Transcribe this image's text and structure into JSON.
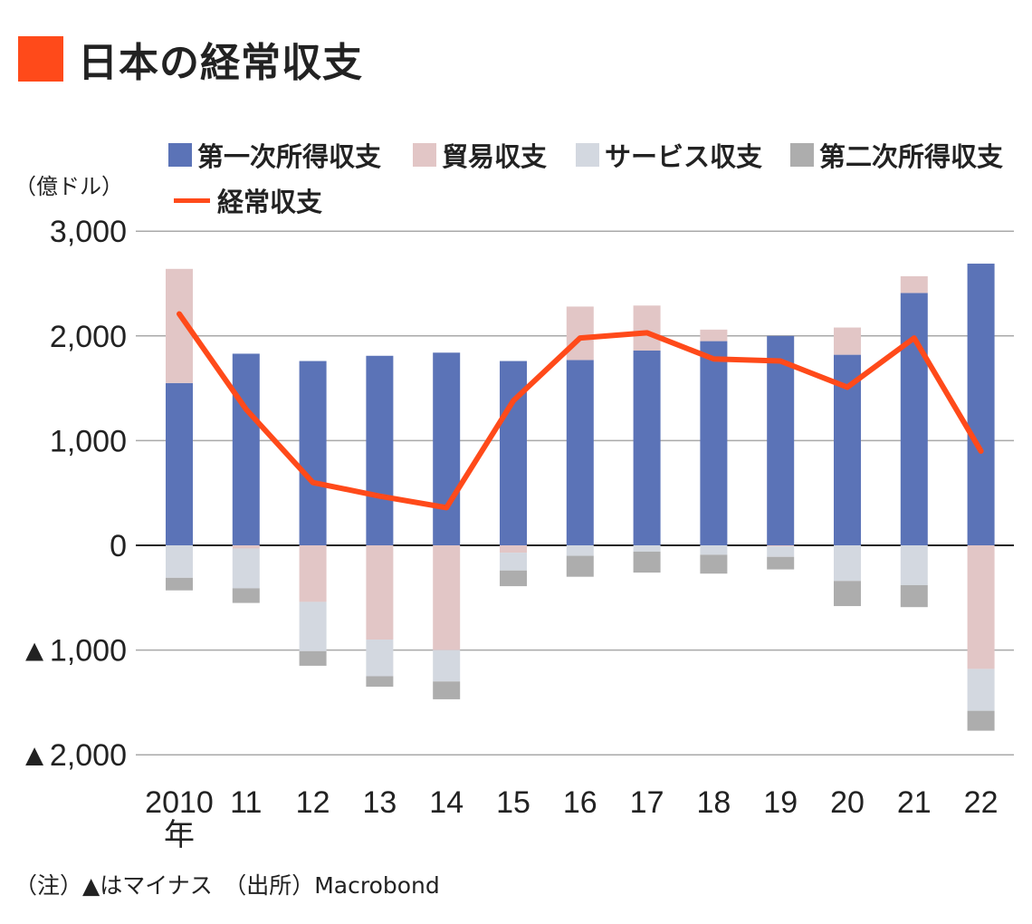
{
  "title": "日本の経常収支",
  "title_color": "#ff4a1a",
  "unit_label": "（億ドル）",
  "note": "（注）▲はマイナス　（出所）Macrobond",
  "chart_data": {
    "type": "bar",
    "stacked": true,
    "title": "日本の経常収支",
    "ylabel": "（億ドル）",
    "ylim": [
      -2000,
      3000
    ],
    "yticks": [
      3000,
      2000,
      1000,
      0,
      -1000,
      -2000
    ],
    "ytick_labels": [
      "3,000",
      "2,000",
      "1,000",
      "0",
      "▲1,000",
      "▲2,000"
    ],
    "categories": [
      "2010",
      "11",
      "12",
      "13",
      "14",
      "15",
      "16",
      "17",
      "18",
      "19",
      "20",
      "21",
      "22"
    ],
    "x_unit": "年",
    "series": [
      {
        "name": "第一次所得収支",
        "color": "#5b73b7",
        "values": [
          1550,
          1830,
          1760,
          1810,
          1840,
          1760,
          1770,
          1860,
          1950,
          2000,
          1820,
          2410,
          2690
        ]
      },
      {
        "name": "貿易収支",
        "color": "#e2c6c6",
        "values": [
          1090,
          -30,
          -540,
          -900,
          -1000,
          -70,
          510,
          430,
          110,
          -10,
          260,
          160,
          -1180
        ]
      },
      {
        "name": "サービス収支",
        "color": "#d3d8e0",
        "values": [
          -310,
          -380,
          -470,
          -350,
          -300,
          -170,
          -100,
          -60,
          -90,
          -100,
          -340,
          -380,
          -400
        ]
      },
      {
        "name": "第二次所得収支",
        "color": "#adadad",
        "values": [
          -120,
          -140,
          -140,
          -100,
          -170,
          -150,
          -200,
          -200,
          -180,
          -120,
          -240,
          -210,
          -190
        ]
      }
    ],
    "line": {
      "name": "経常収支",
      "color": "#ff4a1a",
      "values": [
        2210,
        1300,
        600,
        470,
        360,
        1380,
        1980,
        2030,
        1780,
        1760,
        1510,
        1980,
        900
      ]
    },
    "legend_position": "top"
  }
}
